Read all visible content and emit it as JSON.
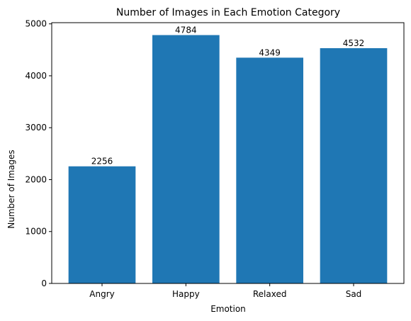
{
  "chart_data": {
    "type": "bar",
    "title": "Number of Images in Each Emotion Category",
    "xlabel": "Emotion",
    "ylabel": "Number of Images",
    "categories": [
      "Angry",
      "Happy",
      "Relaxed",
      "Sad"
    ],
    "values": [
      2256,
      4784,
      4349,
      4532
    ],
    "data_labels": [
      "2256",
      "4784",
      "4349",
      "4532"
    ],
    "ylim": [
      0,
      5023
    ],
    "yticks": [
      0,
      1000,
      2000,
      3000,
      4000,
      5000
    ],
    "ytick_labels": [
      "0",
      "1000",
      "2000",
      "3000",
      "4000",
      "5000"
    ],
    "grid": false,
    "bar_color": "#1f77b4"
  }
}
